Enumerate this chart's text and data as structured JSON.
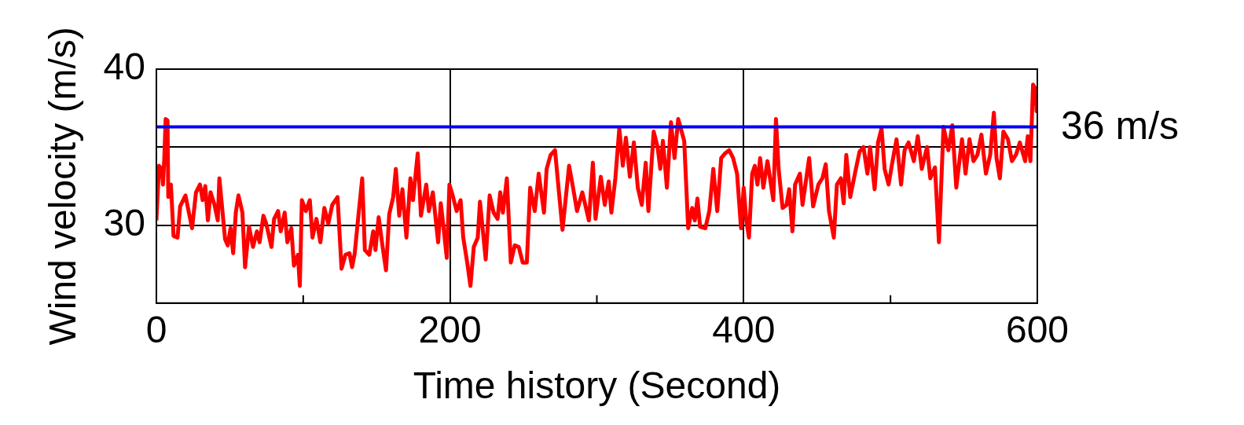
{
  "chart_data": {
    "type": "line",
    "xlabel": "Time history (Second)",
    "ylabel": "Wind velocity (m/s)",
    "xlim": [
      0,
      600
    ],
    "ylim": [
      25,
      40
    ],
    "xticks": [
      0,
      {
        "value": 100,
        "label": null
      },
      200,
      {
        "value": 300,
        "label": null
      },
      400,
      {
        "value": 500,
        "label": null
      },
      600
    ],
    "yticks": [
      30,
      {
        "value": 35,
        "label": null
      },
      40
    ],
    "grid": true,
    "legend": false,
    "marker": "none",
    "ref_lines": [
      {
        "axis": "y",
        "value": 36.3,
        "label": "36 m/s",
        "color": "#0000ff"
      }
    ],
    "series": [
      {
        "color": "#ff0000",
        "x": [
          0,
          1.8,
          3.6,
          4.5,
          5.4,
          6.3,
          7.6,
          8.1,
          9.9,
          11.7,
          14.4,
          16.2,
          19.8,
          24.3,
          27,
          29.7,
          31.5,
          33.3,
          35.1,
          36.9,
          39.6,
          41.8,
          42.9,
          45,
          46.8,
          48.6,
          50.5,
          52.3,
          54.1,
          55.9,
          58.6,
          60.4,
          63.1,
          65.8,
          68.5,
          70.3,
          72.9,
          74.8,
          78.4,
          80.2,
          82.9,
          84.7,
          87.4,
          89.2,
          91.9,
          93.7,
          96.4,
          97.7,
          99.1,
          101.8,
          104.5,
          106.3,
          109,
          111.7,
          114.4,
          117.1,
          119.8,
          123.4,
          126.1,
          128.8,
          131.5,
          133.3,
          135.1,
          137.8,
          140.2,
          142,
          145,
          147.7,
          149.2,
          151.4,
          154.1,
          156.4,
          158.6,
          161.3,
          163.1,
          165.4,
          167.6,
          170.3,
          173,
          174.8,
          178,
          180.2,
          183.8,
          185.6,
          188.3,
          191.9,
          193.7,
          195.5,
          197.8,
          199.6,
          201.8,
          204.5,
          207.2,
          209,
          211.7,
          213.9,
          216.2,
          218.9,
          220.4,
          224.3,
          227,
          229.7,
          232.4,
          234.2,
          236,
          238.7,
          241.4,
          244.1,
          246.8,
          249.5,
          252.3,
          254.6,
          257.7,
          260.4,
          264,
          265.8,
          268.5,
          271.5,
          273.9,
          276.6,
          281.1,
          283.8,
          286.5,
          290.1,
          294.6,
          297.3,
          299.1,
          302.7,
          305.4,
          308.1,
          309.9,
          312.6,
          315.3,
          317.7,
          319.8,
          322.5,
          325.2,
          327.9,
          330.6,
          333.3,
          335.1,
          338.7,
          341.4,
          343.2,
          345,
          347.7,
          350.5,
          352.9,
          355.4,
          359.5,
          362.2,
          364.9,
          366.7,
          368.5,
          370.3,
          373.9,
          376.6,
          379.3,
          382,
          384.7,
          387.4,
          390.1,
          392.8,
          395.5,
          398.2,
          400,
          401.8,
          403.6,
          405.8,
          407.6,
          409.4,
          411.2,
          413.4,
          416.2,
          420.2,
          422,
          423.8,
          426.5,
          429.2,
          431,
          433.2,
          435,
          438.3,
          440.1,
          444.6,
          447.3,
          450.9,
          453.6,
          455.9,
          458.1,
          461.4,
          463.5,
          466.2,
          468.1,
          469.9,
          472.6,
          476.2,
          478.9,
          481.6,
          484.3,
          486.1,
          489.2,
          491.5,
          493.9,
          496,
          498.7,
          501.4,
          504.1,
          507.2,
          509.6,
          512.3,
          515.9,
          518.6,
          521.3,
          524.9,
          527.1,
          530.3,
          533,
          536.1,
          539.4,
          542.1,
          544.8,
          548.7,
          551.1,
          553.8,
          556.5,
          559.2,
          561.9,
          565,
          567.9,
          570.4,
          572.2,
          574.5,
          576.9,
          580,
          582.7,
          585.4,
          588.1,
          591.7,
          593.5,
          595.3,
          597.1,
          598.9,
          599.5,
          600
        ],
        "values": [
          30.3,
          33.8,
          33.6,
          32.6,
          34.3,
          36.8,
          36.7,
          31.8,
          32.6,
          29.3,
          29.2,
          31.2,
          31.9,
          29.8,
          32.1,
          32.6,
          31.6,
          32.5,
          30.3,
          32.1,
          31.3,
          30.3,
          33,
          30.9,
          29.1,
          28.7,
          29.8,
          28.2,
          30.8,
          31.9,
          30.8,
          27.3,
          29.9,
          28.6,
          29.6,
          28.9,
          30.6,
          30.1,
          28.6,
          30.4,
          30.9,
          29.6,
          30.8,
          28.9,
          29.8,
          27.4,
          28.1,
          26.1,
          31.6,
          30.9,
          31.6,
          29.2,
          30.4,
          28.9,
          31.1,
          30.1,
          31.3,
          31.8,
          27.2,
          28.1,
          28.2,
          27.3,
          28.2,
          30.8,
          33,
          28.4,
          28.1,
          29.6,
          28.4,
          30.5,
          28.6,
          27.1,
          30.7,
          31.8,
          33.6,
          30.6,
          32.3,
          29.2,
          33,
          31.6,
          34.6,
          30.6,
          32.6,
          30.9,
          32.1,
          28.9,
          31.4,
          29.9,
          27.9,
          32.6,
          31.9,
          30.9,
          31.6,
          29.2,
          27.6,
          26.1,
          28.6,
          29.2,
          31.5,
          27.8,
          31.9,
          30.8,
          30.4,
          32.1,
          30.8,
          33,
          27.6,
          28.7,
          28.6,
          27.6,
          27.6,
          32.4,
          30.9,
          33.3,
          30.8,
          33.6,
          34.5,
          34.8,
          32.4,
          29.7,
          33.8,
          32.4,
          30.9,
          32.1,
          30.3,
          34,
          30.4,
          33.1,
          31.3,
          32.8,
          30.8,
          33,
          36.2,
          33.8,
          35.6,
          33.1,
          35.3,
          32.4,
          31.3,
          34,
          30.9,
          36,
          35,
          33.6,
          35.4,
          32.4,
          36.6,
          34.3,
          36.8,
          35.4,
          29.8,
          31.1,
          30.3,
          31.7,
          29.9,
          29.8,
          30.9,
          33.6,
          30.9,
          34.3,
          34.6,
          34.8,
          34.3,
          33.3,
          29.8,
          32.4,
          30.3,
          29.2,
          33.3,
          33.8,
          32.6,
          34.3,
          32.4,
          34.1,
          31.6,
          36.8,
          33.6,
          31.1,
          31.3,
          32.3,
          29.6,
          32.6,
          33.3,
          31.3,
          34.3,
          31.2,
          32.6,
          33,
          33.9,
          30.9,
          29.2,
          32.6,
          33,
          31.4,
          34.5,
          31.8,
          33.5,
          34.7,
          35,
          33.3,
          35,
          32.3,
          35.3,
          36.2,
          33.6,
          32.6,
          34.1,
          35.5,
          32.6,
          34.8,
          35.3,
          34.1,
          35.7,
          33.6,
          35,
          33,
          33.7,
          28.9,
          36.3,
          34.8,
          36.4,
          32.4,
          35.5,
          33.3,
          35.5,
          34.1,
          34.5,
          35.8,
          33.3,
          34.5,
          37.2,
          34.3,
          33,
          36,
          35.5,
          34.1,
          34.5,
          35.3,
          34.1,
          35.7,
          34.1,
          39,
          38.7,
          37.3,
          38.8
        ]
      }
    ]
  }
}
